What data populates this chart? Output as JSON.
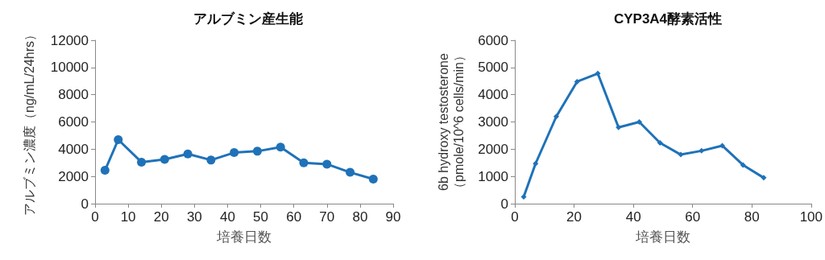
{
  "chart_data": [
    {
      "type": "line",
      "title": "アルブミン産生能",
      "xlabel": "培養日数",
      "ylabel": "アルブミン濃度（ng/mL/24hrs）",
      "x": [
        3,
        7,
        14,
        21,
        28,
        35,
        42,
        49,
        56,
        63,
        70,
        77,
        84
      ],
      "series": [
        {
          "color": "#1f72b8",
          "values": [
            2450,
            4700,
            3050,
            3250,
            3650,
            3200,
            3750,
            3850,
            4150,
            3000,
            2900,
            2300,
            1800
          ]
        }
      ],
      "xlim": [
        0,
        90
      ],
      "xticks": [
        0,
        10,
        20,
        30,
        40,
        50,
        60,
        70,
        80,
        90
      ],
      "ylim": [
        0,
        12000
      ],
      "yticks": [
        0,
        2000,
        4000,
        6000,
        8000,
        10000,
        12000
      ],
      "grid": false,
      "marker": "circle",
      "line_style": "solid"
    },
    {
      "type": "line",
      "title": "CYP3A4酵素活性",
      "xlabel": "培養日数",
      "ylabel": "6b hydroxy testosterone\n（pmole/10^6 cells/min）",
      "x": [
        3,
        7,
        14,
        21,
        28,
        35,
        42,
        49,
        56,
        63,
        70,
        77,
        84
      ],
      "series": [
        {
          "color": "#1f72b8",
          "values": [
            250,
            1470,
            3200,
            4480,
            4780,
            2800,
            3000,
            2230,
            1800,
            1940,
            2130,
            1420,
            950
          ]
        }
      ],
      "xlim": [
        0,
        100
      ],
      "xticks": [
        0,
        20,
        40,
        60,
        80,
        100
      ],
      "ylim": [
        0,
        6000
      ],
      "yticks": [
        0,
        1000,
        2000,
        3000,
        4000,
        5000,
        6000
      ],
      "grid": false,
      "marker": "diamond",
      "line_style": "solid"
    }
  ]
}
